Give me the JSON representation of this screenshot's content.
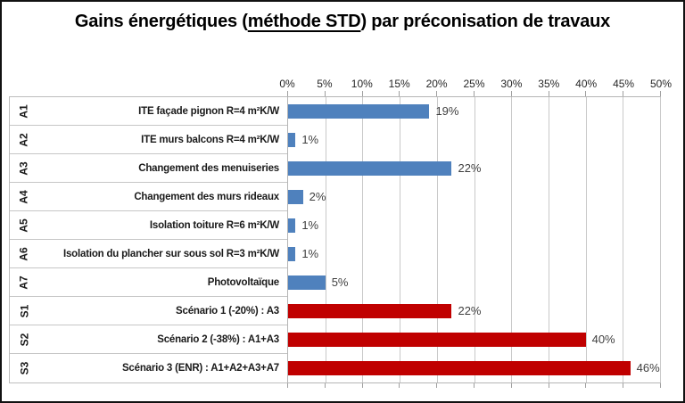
{
  "title": {
    "prefix": "Gains énergétiques (",
    "underlined": "méthode STD",
    "suffix": ") par préconisation de travaux"
  },
  "chart_data": {
    "type": "bar",
    "orientation": "horizontal",
    "title": "Gains énergétiques (méthode STD) par préconisation de travaux",
    "x_axis": {
      "unit": "%",
      "min": 0,
      "max": 50,
      "tick_step": 5,
      "tick_labels": [
        "0%",
        "5%",
        "10%",
        "15%",
        "20%",
        "25%",
        "30%",
        "35%",
        "40%",
        "45%",
        "50%"
      ],
      "position": "top"
    },
    "gridlines": "vertical every 5%",
    "legend": "none",
    "series_colors": {
      "action": "#4F81BD",
      "scenario": "#C00000"
    },
    "rows": [
      {
        "code": "A1",
        "label": "ITE façade pignon R=4 m²K/W",
        "value": 19,
        "value_label": "19%",
        "series": "action"
      },
      {
        "code": "A2",
        "label": "ITE murs balcons R=4 m²K/W",
        "value": 1,
        "value_label": "1%",
        "series": "action"
      },
      {
        "code": "A3",
        "label": "Changement des menuiseries",
        "value": 22,
        "value_label": "22%",
        "series": "action"
      },
      {
        "code": "A4",
        "label": "Changement des murs rideaux",
        "value": 2,
        "value_label": "2%",
        "series": "action"
      },
      {
        "code": "A5",
        "label": "Isolation toiture R=6 m²K/W",
        "value": 1,
        "value_label": "1%",
        "series": "action"
      },
      {
        "code": "A6",
        "label": "Isolation du plancher sur sous sol R=3 m²K/W",
        "value": 1,
        "value_label": "1%",
        "series": "action"
      },
      {
        "code": "A7",
        "label": "Photovoltaïque",
        "value": 5,
        "value_label": "5%",
        "series": "action"
      },
      {
        "code": "S1",
        "label": "Scénario 1 (-20%) : A3",
        "value": 22,
        "value_label": "22%",
        "series": "scenario"
      },
      {
        "code": "S2",
        "label": "Scénario 2 (-38%) : A1+A3",
        "value": 40,
        "value_label": "40%",
        "series": "scenario"
      },
      {
        "code": "S3",
        "label": "Scénario 3 (ENR) : A1+A2+A3+A7",
        "value": 46,
        "value_label": "46%",
        "series": "scenario"
      }
    ]
  },
  "colors": {
    "action_bar": "#4F81BD",
    "scenario_bar": "#C00000",
    "gridline": "#C9C9C9",
    "value_label_text": "#3F3F3F",
    "frame_border": "#111111"
  }
}
